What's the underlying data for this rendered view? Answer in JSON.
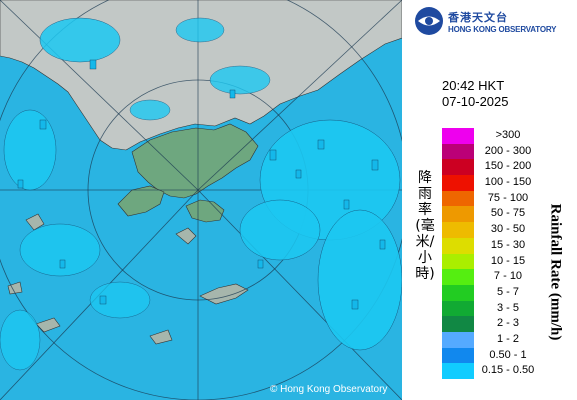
{
  "copyright": "© Hong Kong Observatory",
  "logo": {
    "cn": "香港天文台",
    "en": "HONG KONG OBSERVATORY"
  },
  "timestamp": {
    "time": "20:42 HKT",
    "date": "07-10-2025"
  },
  "legend": {
    "title_en": "Rainfall Rate (mm/h)",
    "title_cn": "降雨率(毫米/小時)",
    "items": [
      {
        "label": ">300",
        "color": "#ee00ee"
      },
      {
        "label": "200 - 300",
        "color": "#bb0077"
      },
      {
        "label": "150 - 200",
        "color": "#cc0022"
      },
      {
        "label": "100 - 150",
        "color": "#ee1100"
      },
      {
        "label": "75 - 100",
        "color": "#ee6600"
      },
      {
        "label": "50 - 75",
        "color": "#ee9900"
      },
      {
        "label": "30 - 50",
        "color": "#eebb00"
      },
      {
        "label": "15 - 30",
        "color": "#dddd00"
      },
      {
        "label": "10 - 15",
        "color": "#aaee00"
      },
      {
        "label": "7 - 10",
        "color": "#55ee11"
      },
      {
        "label": "5 - 7",
        "color": "#22cc22"
      },
      {
        "label": "3 - 5",
        "color": "#11aa33"
      },
      {
        "label": "2 - 3",
        "color": "#118844"
      },
      {
        "label": "1 - 2",
        "color": "#55aaff"
      },
      {
        "label": "0.50 - 1",
        "color": "#1188ee"
      },
      {
        "label": "0.15 - 0.50",
        "color": "#11ccff"
      }
    ]
  },
  "colors": {
    "sea": "#2ab4e2",
    "land": "#c2c8c6",
    "highlands": "#5f9c78",
    "rain_echo": "#1cc8f2"
  }
}
